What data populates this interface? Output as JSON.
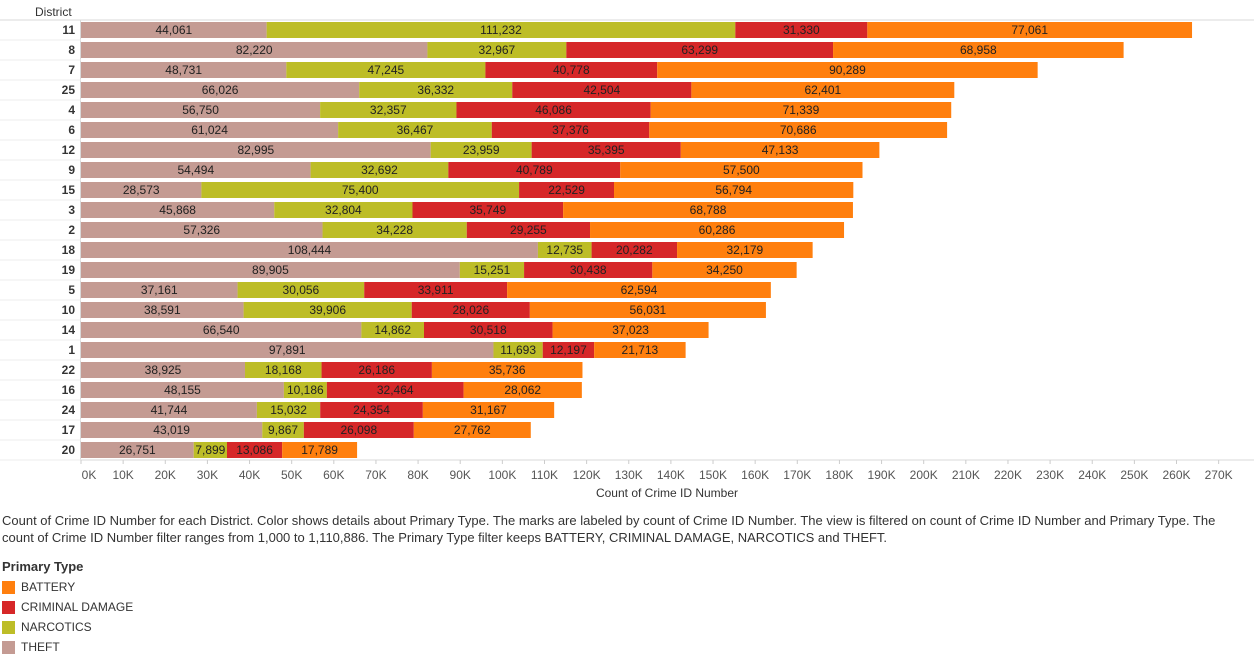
{
  "chart_data": {
    "type": "bar",
    "orientation": "horizontal",
    "stacked": true,
    "row_header": "District",
    "categories": [
      "11",
      "8",
      "7",
      "25",
      "4",
      "6",
      "12",
      "9",
      "15",
      "3",
      "2",
      "18",
      "19",
      "5",
      "10",
      "14",
      "1",
      "22",
      "16",
      "24",
      "17",
      "20"
    ],
    "series": [
      {
        "name": "THEFT",
        "color": "#C49B93",
        "values": [
          44061,
          82220,
          48731,
          66026,
          56750,
          61024,
          82995,
          54494,
          28573,
          45868,
          57326,
          108444,
          89905,
          37161,
          38591,
          66540,
          97891,
          38925,
          48155,
          41744,
          43019,
          26751
        ],
        "labels": [
          "44,061",
          "82,220",
          "48,731",
          "66,026",
          "56,750",
          "61,024",
          "82,995",
          "54,494",
          "28,573",
          "45,868",
          "57,326",
          "108,444",
          "89,905",
          "37,161",
          "38,591",
          "66,540",
          "97,891",
          "38,925",
          "48,155",
          "41,744",
          "43,019",
          "26,751"
        ]
      },
      {
        "name": "NARCOTICS",
        "color": "#BDBD27",
        "values": [
          111232,
          32967,
          47245,
          36332,
          32357,
          36467,
          23959,
          32692,
          75400,
          32804,
          34228,
          12735,
          15251,
          30056,
          39906,
          14862,
          11693,
          18168,
          10186,
          15032,
          9867,
          7899
        ],
        "labels": [
          "111,232",
          "32,967",
          "47,245",
          "36,332",
          "32,357",
          "36,467",
          "23,959",
          "32,692",
          "75,400",
          "32,804",
          "34,228",
          "12,735",
          "15,251",
          "30,056",
          "39,906",
          "14,862",
          "11,693",
          "18,168",
          "10,186",
          "15,032",
          "9,867",
          "7,899"
        ]
      },
      {
        "name": "CRIMINAL DAMAGE",
        "color": "#D62728",
        "values": [
          31330,
          63299,
          40778,
          42504,
          46086,
          37376,
          35395,
          40789,
          22529,
          35749,
          29255,
          20282,
          30438,
          33911,
          28026,
          30518,
          12197,
          26186,
          32464,
          24354,
          26098,
          13086
        ],
        "labels": [
          "31,330",
          "63,299",
          "40,778",
          "42,504",
          "46,086",
          "37,376",
          "35,395",
          "40,789",
          "22,529",
          "35,749",
          "29,255",
          "20,282",
          "30,438",
          "33,911",
          "28,026",
          "30,518",
          "12,197",
          "26,186",
          "32,464",
          "24,354",
          "26,098",
          "13,086"
        ]
      },
      {
        "name": "BATTERY",
        "color": "#FF7F0E",
        "values": [
          77061,
          68958,
          90289,
          62401,
          71339,
          70686,
          47133,
          57500,
          56794,
          68788,
          60286,
          32179,
          34250,
          62594,
          56031,
          37023,
          21713,
          35736,
          28062,
          31167,
          27762,
          17789
        ],
        "labels": [
          "77,061",
          "68,958",
          "90,289",
          "62,401",
          "71,339",
          "70,686",
          "47,133",
          "57,500",
          "56,794",
          "68,788",
          "60,286",
          "32,179",
          "34,250",
          "62,594",
          "56,031",
          "37,023",
          "21,713",
          "35,736",
          "28,062",
          "31,167",
          "27,762",
          "17,789"
        ]
      }
    ],
    "xlim": [
      0,
      275000
    ],
    "x_ticks": [
      0,
      10000,
      20000,
      30000,
      40000,
      50000,
      60000,
      70000,
      80000,
      90000,
      100000,
      110000,
      120000,
      130000,
      140000,
      150000,
      160000,
      170000,
      180000,
      190000,
      200000,
      210000,
      220000,
      230000,
      240000,
      250000,
      260000,
      270000
    ],
    "x_tick_labels": [
      "0K",
      "10K",
      "20K",
      "30K",
      "40K",
      "50K",
      "60K",
      "70K",
      "80K",
      "90K",
      "100K",
      "110K",
      "120K",
      "130K",
      "140K",
      "150K",
      "160K",
      "170K",
      "180K",
      "190K",
      "200K",
      "210K",
      "220K",
      "230K",
      "240K",
      "250K",
      "260K",
      "270K"
    ],
    "xlabel": "Count of Crime ID Number",
    "ylabel": "District",
    "legend_position": "bottom-left",
    "grid": false
  },
  "caption": "Count of Crime ID Number for each District.  Color shows details about Primary Type.  The marks are labeled by count of Crime ID Number. The view is filtered on count of Crime ID Number and Primary Type. The count of Crime ID Number filter ranges from 1,000 to 1,110,886. The Primary Type filter keeps BATTERY, CRIMINAL DAMAGE, NARCOTICS and THEFT.",
  "legend": {
    "title": "Primary Type",
    "items": [
      {
        "label": "BATTERY",
        "color": "#FF7F0E"
      },
      {
        "label": "CRIMINAL DAMAGE",
        "color": "#D62728"
      },
      {
        "label": "NARCOTICS",
        "color": "#BDBD27"
      },
      {
        "label": "THEFT",
        "color": "#C49B93"
      }
    ]
  }
}
